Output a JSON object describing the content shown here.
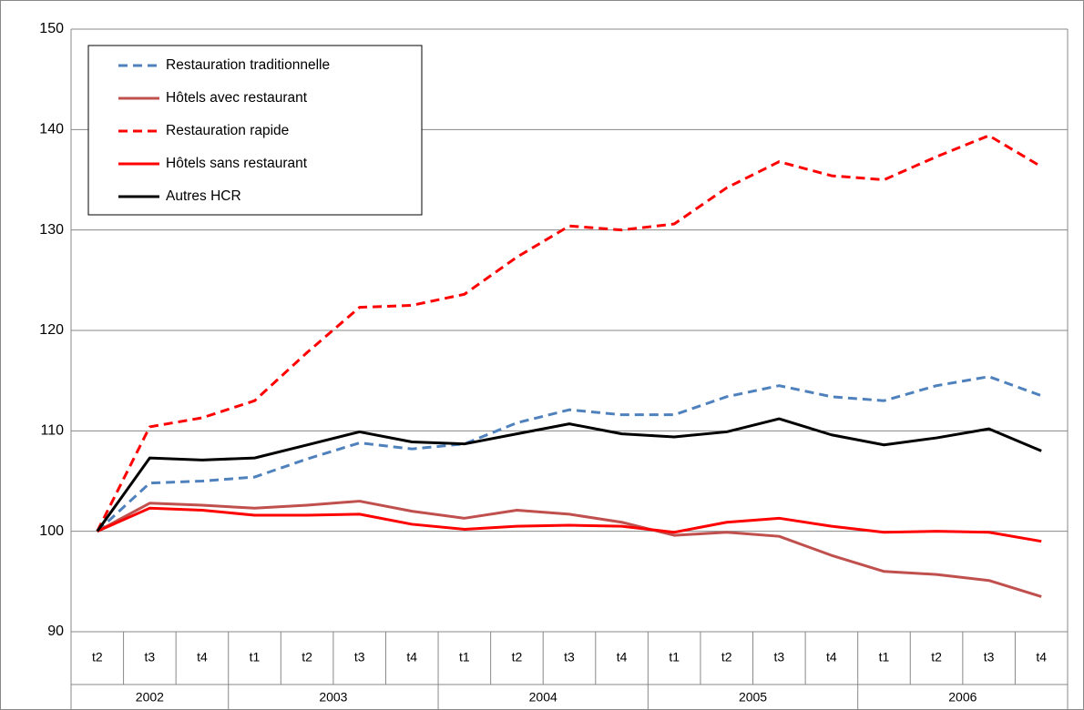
{
  "chart_data": {
    "type": "line",
    "categories": [
      "t2",
      "t3",
      "t4",
      "t1",
      "t2",
      "t3",
      "t4",
      "t1",
      "t2",
      "t3",
      "t4",
      "t1",
      "t2",
      "t3",
      "t4",
      "t1",
      "t2",
      "t3",
      "t4"
    ],
    "year_labels": [
      "2002",
      "2003",
      "2004",
      "2005",
      "2006"
    ],
    "ylim": [
      90,
      150
    ],
    "yticks": [
      90,
      100,
      110,
      120,
      130,
      140,
      150
    ],
    "grid": true,
    "legend": "top-left",
    "series": [
      {
        "name": "Restauration traditionnelle",
        "color": "#4f81bd",
        "dashed": true,
        "values": [
          100,
          104.8,
          105.0,
          105.4,
          107.2,
          108.8,
          108.2,
          108.7,
          110.8,
          112.1,
          111.6,
          111.6,
          113.4,
          114.5,
          113.4,
          113.0,
          114.5,
          115.4,
          113.5
        ]
      },
      {
        "name": "Hôtels avec restaurant",
        "color": "#c0504d",
        "dashed": false,
        "values": [
          100,
          102.8,
          102.6,
          102.3,
          102.6,
          103.0,
          102.0,
          101.3,
          102.1,
          101.7,
          100.9,
          99.6,
          99.9,
          99.5,
          97.6,
          96.0,
          95.7,
          95.1,
          93.5
        ]
      },
      {
        "name": "Restauration rapide",
        "color": "#ff0000",
        "dashed": true,
        "values": [
          100,
          110.4,
          111.3,
          113.0,
          117.8,
          122.3,
          122.5,
          123.6,
          127.3,
          130.4,
          130.0,
          130.6,
          134.2,
          136.8,
          135.4,
          135.0,
          137.3,
          139.4,
          136.3
        ]
      },
      {
        "name": "Hôtels sans restaurant",
        "color": "#ff0000",
        "dashed": false,
        "values": [
          100,
          102.3,
          102.1,
          101.6,
          101.6,
          101.7,
          100.7,
          100.2,
          100.5,
          100.6,
          100.5,
          99.9,
          100.9,
          101.3,
          100.5,
          99.9,
          100.0,
          99.9,
          99.0
        ]
      },
      {
        "name": "Autres HCR",
        "color": "#000000",
        "dashed": false,
        "values": [
          100,
          107.3,
          107.1,
          107.3,
          108.6,
          109.9,
          108.9,
          108.7,
          109.7,
          110.7,
          109.7,
          109.4,
          109.9,
          111.2,
          109.6,
          108.6,
          109.3,
          110.2,
          108.0
        ]
      }
    ]
  }
}
